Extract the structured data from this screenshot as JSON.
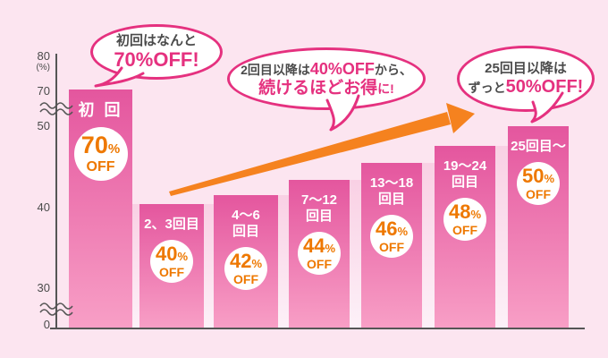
{
  "bubbles": {
    "first": {
      "line1": "初回はなんと",
      "line2": "70%OFF!"
    },
    "middle": {
      "line1_pre": "2回目以降は",
      "line1_accent": "40%OFF",
      "line1_post": "から、",
      "line2_accent": "続けるほどお得",
      "line2_suffix": "に!"
    },
    "right": {
      "line1": "25回目以降は",
      "line2_pre": "ずっと",
      "line2_accent": "50%OFF!"
    }
  },
  "chart_data": {
    "type": "bar",
    "title": "",
    "categories": [
      "初回",
      "2、3回目",
      "4〜6回目",
      "7〜12回目",
      "13〜18回目",
      "19〜24回目",
      "25回目〜"
    ],
    "values": [
      70,
      40,
      42,
      44,
      46,
      48,
      50
    ],
    "unit": "%OFF",
    "ylabel": "(%)",
    "y_tick_labels": [
      "80",
      "70",
      "50",
      "40",
      "30",
      "0"
    ],
    "axis_breaks": [
      [
        0,
        30
      ],
      [
        50,
        70
      ]
    ],
    "legend": false,
    "badge_mark": "%",
    "badge_off": "OFF",
    "bars": [
      {
        "label_lines": [
          "初 回"
        ],
        "percent": "70"
      },
      {
        "label_lines": [
          "2、3回目"
        ],
        "percent": "40"
      },
      {
        "label_lines": [
          "4〜6",
          "回目"
        ],
        "percent": "42"
      },
      {
        "label_lines": [
          "7〜12",
          "回目"
        ],
        "percent": "44"
      },
      {
        "label_lines": [
          "13〜18",
          "回目"
        ],
        "percent": "46"
      },
      {
        "label_lines": [
          "19〜24",
          "回目"
        ],
        "percent": "48"
      },
      {
        "label_lines": [
          "25回目〜"
        ],
        "percent": "50"
      }
    ]
  },
  "colors": {
    "accent_pink": "#e5317f",
    "badge_orange": "#ee7800",
    "arrow_orange": "#f5821f",
    "bar_gradient_top": "#e4569e",
    "bar_gradient_bottom": "#f89fc6",
    "background": "#fce5f0",
    "axis": "#555555",
    "text_dark": "#4b4b4b"
  }
}
